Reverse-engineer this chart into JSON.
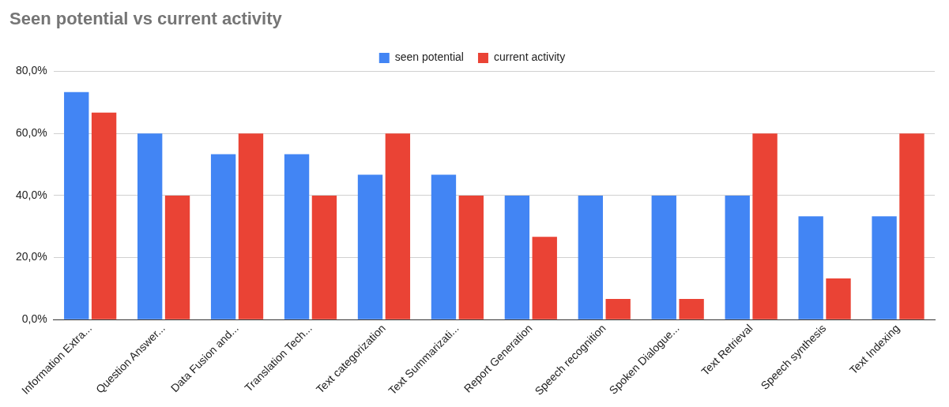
{
  "chart_data": {
    "type": "bar",
    "title": "Seen potential vs current activity",
    "categories": [
      "Information Extra...",
      "Question Answer...",
      "Data Fusion and...",
      "Translation Tech...",
      "Text categorization",
      "Text Summarizati...",
      "Report Generation",
      "Speech recognition",
      "Spoken Dialogue...",
      "Text Retrieval",
      "Speech synthesis",
      "Text Indexing"
    ],
    "series": [
      {
        "name": "seen potential",
        "color": "#4285f4",
        "values": [
          73.3,
          60,
          53.3,
          53.3,
          46.7,
          46.7,
          40,
          40,
          40,
          40,
          33.3,
          33.3
        ]
      },
      {
        "name": "current activity",
        "color": "#ea4335",
        "values": [
          66.7,
          40,
          60,
          40,
          60,
          40,
          26.7,
          6.7,
          6.7,
          60,
          13.3,
          60
        ]
      }
    ],
    "ylim": [
      0,
      80
    ],
    "yticks": [
      {
        "value": 0,
        "label": "0,0%"
      },
      {
        "value": 20,
        "label": "20,0%"
      },
      {
        "value": 40,
        "label": "40,0%"
      },
      {
        "value": 60,
        "label": "60,0%"
      },
      {
        "value": 80,
        "label": "80,0%"
      }
    ],
    "grid": "y",
    "legend": "top"
  }
}
